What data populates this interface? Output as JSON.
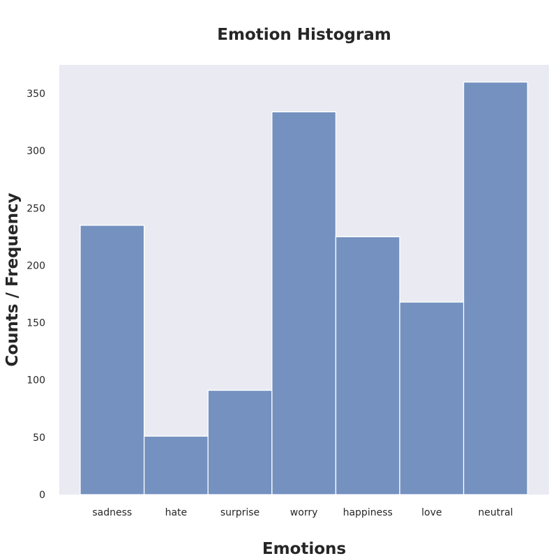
{
  "chart_data": {
    "type": "bar",
    "title": "Emotion Histogram",
    "xlabel": "Emotions",
    "ylabel": "Counts / Frequency",
    "categories": [
      "sadness",
      "hate",
      "surprise",
      "worry",
      "happiness",
      "love",
      "neutral"
    ],
    "values": [
      235,
      51,
      91,
      334,
      225,
      168,
      360
    ],
    "ylim": [
      0,
      375
    ],
    "yticks": [
      "0",
      "50",
      "100",
      "150",
      "200",
      "250",
      "300",
      "350"
    ],
    "grid": false,
    "legend": "none",
    "colors": {
      "bar": "#7491c0",
      "bar_edge": "#ffffff",
      "plot_background": "#eaeaf2",
      "text": "#262626"
    }
  }
}
